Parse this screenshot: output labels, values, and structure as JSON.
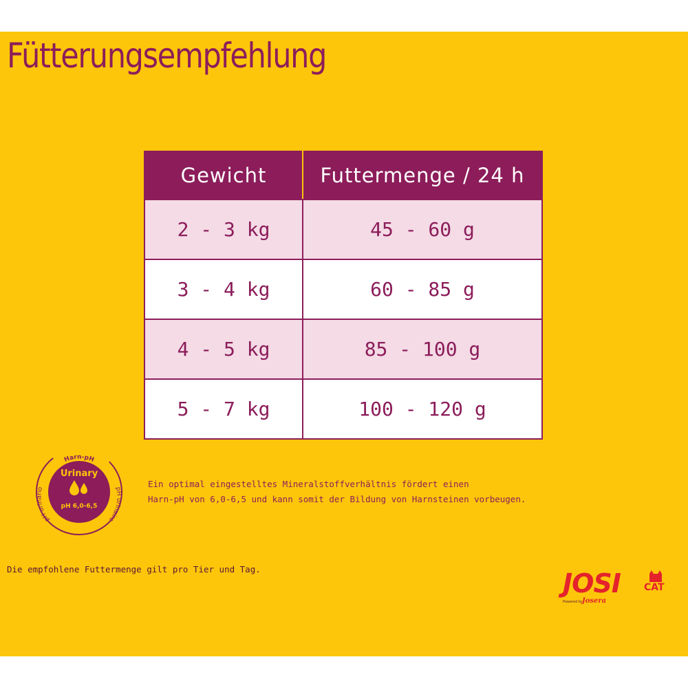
{
  "title": "Fütterungsempfehlung",
  "table": {
    "headers": [
      "Gewicht",
      "Futtermenge / 24 h"
    ],
    "rows": [
      [
        "2 - 3 kg",
        "45 - 60 g"
      ],
      [
        "3 - 4 kg",
        "60 - 85 g"
      ],
      [
        "4 - 5 kg",
        "85 - 100 g"
      ],
      [
        "5 - 7 kg",
        "100 - 120 g"
      ]
    ]
  },
  "badge": {
    "top_label": "Harn-pH",
    "left_label": "pH urinario",
    "right_label": "pH urinaire",
    "title": "Urinary",
    "value": "pH 6,0-6,5",
    "icon": "droplet-icon"
  },
  "info_text": {
    "line1": "Ein optimal eingestelltes Mineralstoffverhältnis fördert einen",
    "line2": "Harn-pH von 6,0-6,5 und kann somit der Bildung von Harnsteinen vorbeugen."
  },
  "footnote": "Die empfohlene Futtermenge gilt pro Tier und Tag.",
  "logo": {
    "brand": "JOSI",
    "sub": "CAT",
    "powered": "Powered by",
    "maker": "Josera"
  },
  "colors": {
    "background": "#fdc60a",
    "primary": "#8c1d5a",
    "row_tint": "#f4dbe6",
    "logo_red": "#e4232b"
  }
}
